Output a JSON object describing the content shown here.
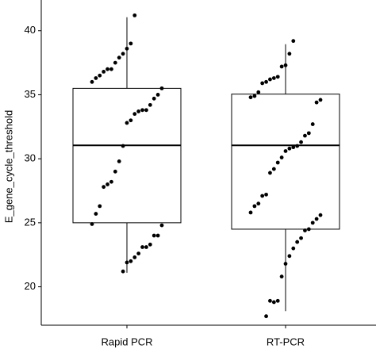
{
  "chart_data": {
    "type": "box",
    "y_label": "E_gene_cycle_threshold",
    "categories": [
      "Rapid PCR",
      "RT-PCR"
    ],
    "boxes": [
      {
        "whisker_low": 21.1,
        "q1": 25.0,
        "median": 31.05,
        "q3": 35.5,
        "whisker_high": 41.05,
        "points": [
          41.2,
          39.0,
          38.6,
          38.2,
          37.9,
          37.5,
          37.0,
          37.0,
          36.8,
          36.5,
          36.3,
          36.0,
          35.5,
          35.0,
          34.7,
          34.2,
          33.8,
          33.8,
          33.7,
          33.5,
          33.0,
          32.8,
          31.0,
          29.8,
          29.0,
          28.2,
          28.0,
          27.8,
          26.3,
          25.7,
          24.9,
          24.8,
          24.0,
          24.0,
          23.3,
          23.1,
          23.1,
          22.6,
          22.3,
          22.0,
          21.9,
          21.2
        ]
      },
      {
        "whisker_low": 18.1,
        "q1": 24.5,
        "median": 31.05,
        "q3": 35.05,
        "whisker_high": 38.95,
        "points": [
          39.2,
          38.2,
          37.3,
          37.2,
          36.4,
          36.3,
          36.2,
          36.0,
          35.9,
          35.2,
          34.9,
          34.8,
          34.6,
          34.4,
          32.7,
          32.0,
          31.8,
          31.3,
          31.0,
          30.9,
          30.8,
          30.6,
          30.1,
          29.7,
          29.2,
          28.9,
          27.2,
          27.1,
          26.5,
          26.3,
          25.8,
          25.6,
          25.3,
          25.0,
          24.5,
          24.4,
          23.8,
          23.5,
          23.0,
          22.4,
          21.8,
          20.8,
          18.9,
          18.8,
          18.9,
          17.7
        ]
      }
    ],
    "box_color": "#000000",
    "box_fill": "#ffffff",
    "point_color": "#000000",
    "ylim": [
      17.0,
      42.4
    ],
    "yticks": [
      20,
      25,
      30,
      35,
      40
    ],
    "grid": false
  }
}
